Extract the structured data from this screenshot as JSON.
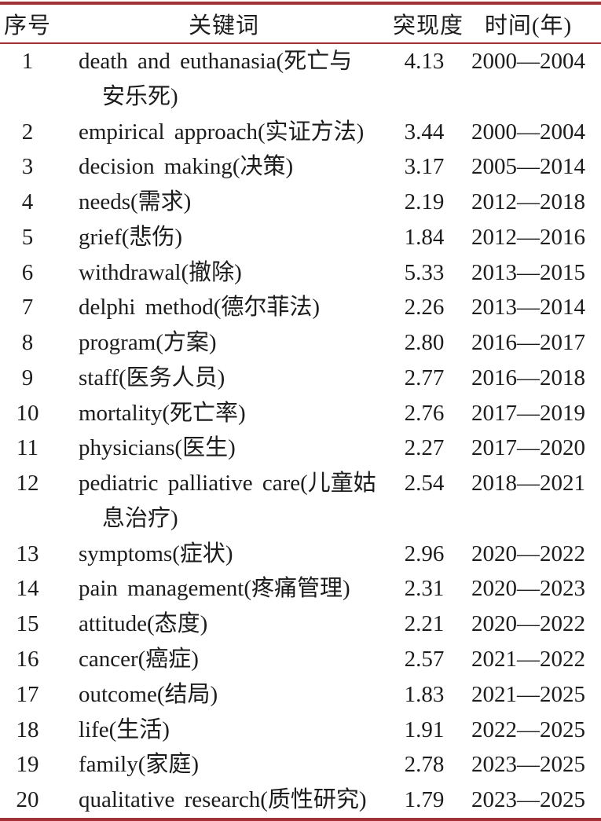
{
  "colors": {
    "rule_red": "#a03238",
    "text": "#1c1c1c",
    "background": "#ffffff"
  },
  "table": {
    "headers": {
      "no": "序号",
      "keyword": "关键词",
      "burst": "突现度",
      "period": "时间(年)"
    },
    "rows": [
      {
        "no": "1",
        "keyword_lines": [
          "death and euthanasia(死亡与",
          "安乐死)"
        ],
        "burst": "4.13",
        "period": "2000—2004"
      },
      {
        "no": "2",
        "keyword_lines": [
          "empirical approach(实证方法)"
        ],
        "burst": "3.44",
        "period": "2000—2004"
      },
      {
        "no": "3",
        "keyword_lines": [
          "decision making(决策)"
        ],
        "burst": "3.17",
        "period": "2005—2014"
      },
      {
        "no": "4",
        "keyword_lines": [
          "needs(需求)"
        ],
        "burst": "2.19",
        "period": "2012—2018"
      },
      {
        "no": "5",
        "keyword_lines": [
          "grief(悲伤)"
        ],
        "burst": "1.84",
        "period": "2012—2016"
      },
      {
        "no": "6",
        "keyword_lines": [
          "withdrawal(撤除)"
        ],
        "burst": "5.33",
        "period": "2013—2015"
      },
      {
        "no": "7",
        "keyword_lines": [
          "delphi method(德尔菲法)"
        ],
        "burst": "2.26",
        "period": "2013—2014"
      },
      {
        "no": "8",
        "keyword_lines": [
          "program(方案)"
        ],
        "burst": "2.80",
        "period": "2016—2017"
      },
      {
        "no": "9",
        "keyword_lines": [
          "staff(医务人员)"
        ],
        "burst": "2.77",
        "period": "2016—2018"
      },
      {
        "no": "10",
        "keyword_lines": [
          "mortality(死亡率)"
        ],
        "burst": "2.76",
        "period": "2017—2019"
      },
      {
        "no": "11",
        "keyword_lines": [
          "physicians(医生)"
        ],
        "burst": "2.27",
        "period": "2017—2020"
      },
      {
        "no": "12",
        "keyword_lines": [
          "pediatric palliative care(儿童姑",
          "息治疗)"
        ],
        "burst": "2.54",
        "period": "2018—2021"
      },
      {
        "no": "13",
        "keyword_lines": [
          "symptoms(症状)"
        ],
        "burst": "2.96",
        "period": "2020—2022"
      },
      {
        "no": "14",
        "keyword_lines": [
          "pain management(疼痛管理)"
        ],
        "burst": "2.31",
        "period": "2020—2023"
      },
      {
        "no": "15",
        "keyword_lines": [
          "attitude(态度)"
        ],
        "burst": "2.21",
        "period": "2020—2022"
      },
      {
        "no": "16",
        "keyword_lines": [
          "cancer(癌症)"
        ],
        "burst": "2.57",
        "period": "2021—2022"
      },
      {
        "no": "17",
        "keyword_lines": [
          "outcome(结局)"
        ],
        "burst": "1.83",
        "period": "2021—2025"
      },
      {
        "no": "18",
        "keyword_lines": [
          "life(生活)"
        ],
        "burst": "1.91",
        "period": "2022—2025"
      },
      {
        "no": "19",
        "keyword_lines": [
          "family(家庭)"
        ],
        "burst": "2.78",
        "period": "2023—2025"
      },
      {
        "no": "20",
        "keyword_lines": [
          "qualitative research(质性研究)"
        ],
        "burst": "1.79",
        "period": "2023—2025"
      }
    ]
  }
}
